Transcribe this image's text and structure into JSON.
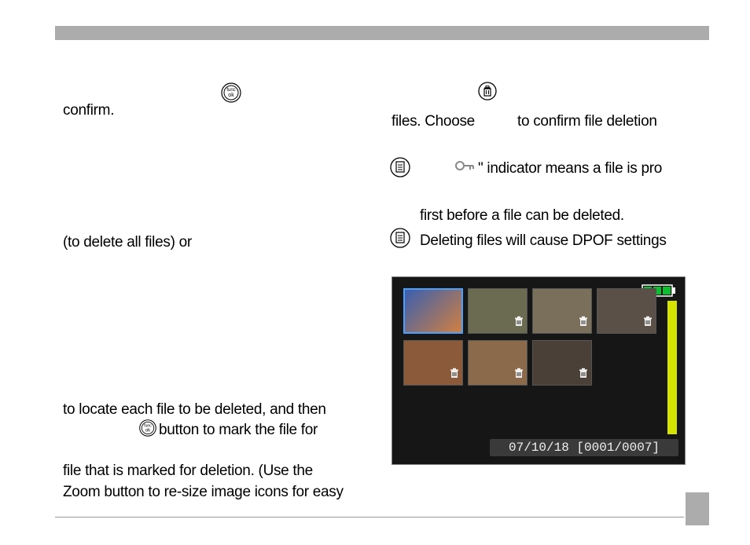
{
  "left": {
    "l1_pre": "",
    "l1_post": "confirm.",
    "l2": "(to delete all files) or",
    "l3": "to locate each file to be deleted, and then",
    "l4_post": " button to mark the file for",
    "l5": "file that is marked for deletion.  (Use the",
    "l6": "Zoom button to re-size image icons for easy"
  },
  "right": {
    "r1_a": "files.  Choose",
    "r1_b": "to confirm file deletion",
    "r2_b": "\" indicator means a file is pro",
    "r3": "first before a file can be deleted.",
    "r4": "Deleting files will cause DPOF settings"
  },
  "camera": {
    "date_text": "07/10/18 [0001/0007]",
    "battery_color": "#0cbf2f",
    "scroll_color": "#d4e400",
    "selected_border": "#4aa0ff",
    "thumbs_row1": [
      {
        "bg": "linear-gradient(135deg,#3a5fb0,#d08040)",
        "selected": true,
        "trash": false
      },
      {
        "bg": "#6b6b52",
        "selected": false,
        "trash": true
      },
      {
        "bg": "#7a6f5a",
        "selected": false,
        "trash": true
      },
      {
        "bg": "#5a5048",
        "selected": false,
        "trash": true
      }
    ],
    "thumbs_row2": [
      {
        "bg": "#8a5a3a",
        "selected": false,
        "trash": true
      },
      {
        "bg": "#8a6a4a",
        "selected": false,
        "trash": true
      },
      {
        "bg": "#4a4038",
        "selected": false,
        "trash": true
      }
    ]
  },
  "icons": {
    "funcok_label": "func ok",
    "trash": "trash-icon",
    "note": "note-icon",
    "key": "key-icon"
  }
}
